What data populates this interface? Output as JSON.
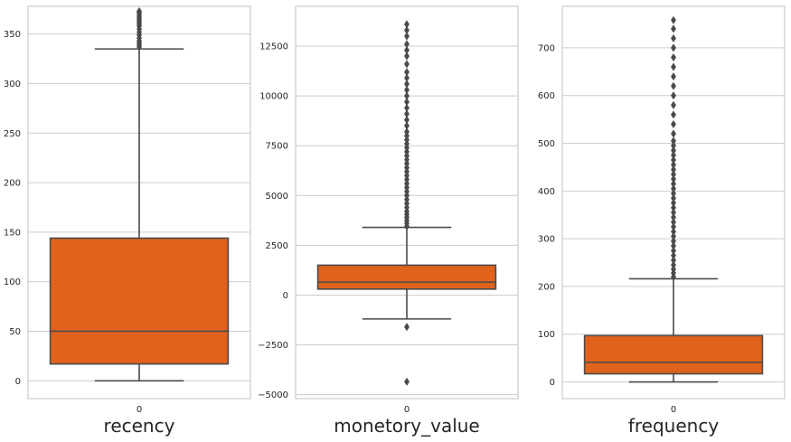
{
  "chart_data": [
    {
      "type": "box",
      "xlabel": "recency",
      "categories": [
        "0"
      ],
      "ylim": [
        -18,
        378
      ],
      "yticks": [
        0,
        50,
        100,
        150,
        200,
        250,
        300,
        350
      ],
      "box": {
        "whislo": 0,
        "q1": 17,
        "median": 50,
        "q3": 144,
        "whishi": 335
      },
      "fliers": [
        337,
        339,
        341,
        343,
        346,
        349,
        352,
        355,
        358,
        360,
        362,
        364,
        366,
        368,
        370,
        372,
        373
      ]
    },
    {
      "type": "box",
      "xlabel": "monetory_value",
      "categories": [
        "0"
      ],
      "ylim": [
        -5200,
        14500
      ],
      "yticks": [
        -5000,
        -2500,
        0,
        2500,
        5000,
        7500,
        10000,
        12500
      ],
      "box": {
        "whislo": -1200,
        "q1": 300,
        "median": 650,
        "q3": 1500,
        "whishi": 3400
      },
      "fliers": [
        -4350,
        -1600,
        3450,
        3600,
        3750,
        3900,
        4050,
        4200,
        4400,
        4600,
        4800,
        5000,
        5200,
        5400,
        5600,
        5800,
        6000,
        6200,
        6400,
        6600,
        6800,
        7000,
        7200,
        7400,
        7600,
        7800,
        8000,
        8200,
        8500,
        8800,
        9100,
        9400,
        9700,
        10000,
        10300,
        10600,
        10900,
        11200,
        11600,
        12000,
        12300,
        12600,
        13000,
        13300,
        13600
      ]
    },
    {
      "type": "box",
      "xlabel": "frequency",
      "categories": [
        "0"
      ],
      "ylim": [
        -35,
        787
      ],
      "yticks": [
        0,
        100,
        200,
        300,
        400,
        500,
        600,
        700
      ],
      "box": {
        "whislo": 0,
        "q1": 17,
        "median": 41,
        "q3": 97,
        "whishi": 216
      },
      "fliers": [
        220,
        228,
        236,
        245,
        255,
        265,
        275,
        285,
        295,
        305,
        315,
        325,
        335,
        345,
        355,
        365,
        375,
        385,
        395,
        405,
        415,
        425,
        435,
        445,
        455,
        465,
        475,
        485,
        495,
        505,
        520,
        540,
        560,
        580,
        600,
        620,
        640,
        660,
        680,
        700,
        720,
        740,
        758
      ]
    }
  ],
  "colors": {
    "box_fill": "#e1621d",
    "line": "#4a4a4a",
    "grid": "#cccccc",
    "frame": "#cccccc"
  }
}
